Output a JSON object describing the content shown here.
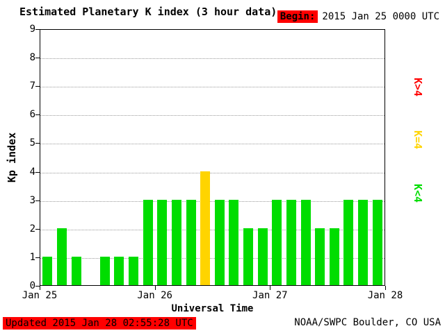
{
  "title": "Estimated Planetary K index (3 hour data)",
  "begin": {
    "label": "Begin:",
    "value": "2015 Jan 25 0000 UTC"
  },
  "footer": {
    "updated": "Updated 2015 Jan 28 02:55:28 UTC",
    "source": "NOAA/SWPC Boulder, CO USA"
  },
  "axes": {
    "ylabel": "Kp index",
    "xlabel": "Universal Time",
    "yticks": [
      0,
      1,
      2,
      3,
      4,
      5,
      6,
      7,
      8,
      9
    ],
    "xticks": [
      "Jan 25",
      "Jan 26",
      "Jan 27",
      "Jan 28"
    ]
  },
  "legend": [
    {
      "label": "K>4",
      "color": "#ff0000"
    },
    {
      "label": "K=4",
      "color": "#ffd400"
    },
    {
      "label": "K<4",
      "color": "#00dd00"
    }
  ],
  "colors": {
    "green": "#00dd00",
    "yellow": "#ffd400",
    "red": "#ff0000"
  },
  "chart_data": {
    "type": "bar",
    "title": "Estimated Planetary K index (3 hour data)",
    "xlabel": "Universal Time",
    "ylabel": "Kp index",
    "ylim": [
      0,
      9
    ],
    "grid": "dotted horizontal at each integer",
    "legend_position": "right, rotated",
    "bin_hours": 3,
    "days": [
      "Jan 25",
      "Jan 26",
      "Jan 27"
    ],
    "values": [
      1,
      2,
      1,
      0,
      1,
      1,
      1,
      3,
      3,
      3,
      3,
      4,
      3,
      3,
      2,
      2,
      3,
      3,
      3,
      2,
      2,
      3,
      3,
      3
    ],
    "color_rule": {
      "lt4": "#00dd00",
      "eq4": "#ffd400",
      "gt4": "#ff0000"
    }
  }
}
